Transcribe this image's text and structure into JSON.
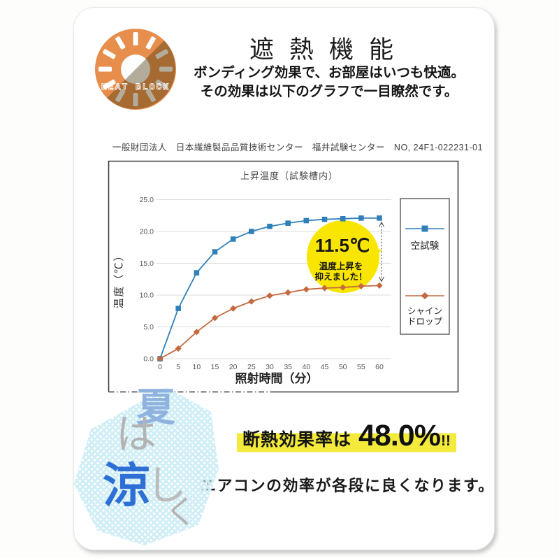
{
  "header": {
    "icon_label": "HEAT BLOCK",
    "icon_colors": {
      "orange": "#e78e4d",
      "shade": "#4d3a10"
    },
    "title": "遮熱機能",
    "line1": "ボンディング効果で、お部屋はいつも快適。",
    "line2": "その効果は以下のグラフで一目瞭然です。"
  },
  "certification": "一般財団法人　日本繊維製品品質技術センター　福井試験センター　NO, 24F1-022231-01",
  "chart_data": {
    "type": "line",
    "title": "上昇温度（試験槽内）",
    "xlabel": "照射時間（分）",
    "ylabel": "温度（℃）",
    "x": [
      0,
      5,
      10,
      15,
      20,
      25,
      30,
      35,
      40,
      45,
      50,
      55,
      60
    ],
    "ylim": [
      0,
      25
    ],
    "yticks": [
      0,
      5,
      10,
      15,
      20,
      25
    ],
    "grid": true,
    "legend_position": "right",
    "series": [
      {
        "name": "空試験",
        "color": "#2f80b9",
        "marker": "square",
        "values": [
          0.0,
          7.9,
          13.5,
          16.8,
          18.8,
          20.0,
          20.8,
          21.3,
          21.7,
          21.9,
          22.0,
          22.1,
          22.1
        ]
      },
      {
        "name": "シャインドロップ",
        "color": "#c4693f",
        "marker": "diamond",
        "values": [
          0.0,
          1.6,
          4.2,
          6.4,
          7.9,
          9.0,
          9.9,
          10.4,
          10.9,
          11.1,
          11.2,
          11.4,
          11.5
        ]
      }
    ],
    "annotation": {
      "big": "11.5℃",
      "line1": "温度上昇を",
      "line2": "抑えました！",
      "bubble_color": "#f9e600",
      "arrow_at_x": 60
    }
  },
  "results": {
    "label": "断熱効果率は",
    "value": "48.0%",
    "bang": "!!",
    "highlight_color": "#f3ea3c",
    "note": "エアコンの効率が各段に良くなります。"
  },
  "decor": {
    "pattern_color": "#d0eef6",
    "chars": [
      {
        "t": "夏",
        "c": "#8fb2de"
      },
      {
        "t": "は",
        "c": "#b3b3b3"
      },
      {
        "t": "涼",
        "c": "#2e6fd6"
      },
      {
        "t": "し",
        "c": "#bcbcbc"
      },
      {
        "t": "く",
        "c": "#b3b3b3"
      }
    ]
  }
}
